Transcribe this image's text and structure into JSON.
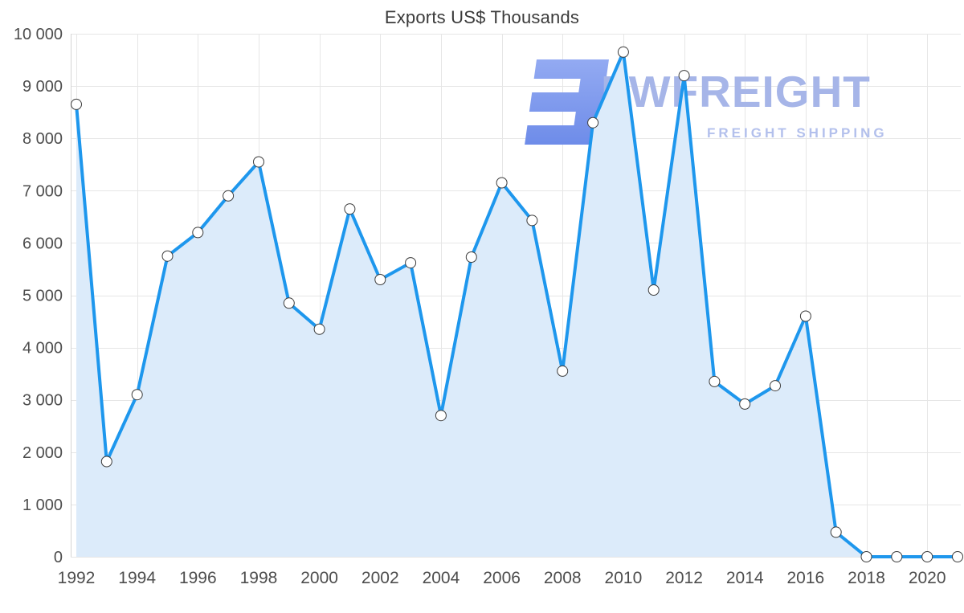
{
  "title": "Exports US$ Thousands",
  "watermark": {
    "brand": "FWFREIGHT",
    "tagline": "FREIGHT SHIPPING"
  },
  "colors": {
    "line": "#1e97ed",
    "fill": "#dcebfa",
    "grid": "#e6e6e6",
    "axis": "#d4d4d4",
    "tick_text": "#4d4d4d",
    "title_text": "#3a3a3a",
    "marker_fill": "#ffffff",
    "marker_stroke": "#3d3d3d",
    "brand_text": "#a6b5e8",
    "tagline_text": "#b3c0ec",
    "logo_gradient_start": "#93aaf2",
    "logo_gradient_end": "#6e8ce9"
  },
  "chart_data": {
    "type": "area",
    "title": "Exports US$ Thousands",
    "x": [
      1992,
      1993,
      1994,
      1995,
      1996,
      1997,
      1998,
      1999,
      2000,
      2001,
      2002,
      2003,
      2004,
      2005,
      2006,
      2007,
      2008,
      2009,
      2010,
      2011,
      2012,
      2013,
      2014,
      2015,
      2016,
      2017,
      2018,
      2019,
      2020,
      2021
    ],
    "series": [
      {
        "name": "Exports US$ Thousands",
        "values": [
          8650,
          1820,
          3100,
          5750,
          6200,
          6900,
          7550,
          4850,
          4350,
          6650,
          5300,
          5620,
          2700,
          5730,
          7150,
          6430,
          3550,
          8300,
          9650,
          5100,
          9200,
          3350,
          2920,
          3270,
          4600,
          470,
          0,
          0,
          0,
          0
        ]
      }
    ],
    "ylim": [
      0,
      10000
    ],
    "yticks": [
      0,
      1000,
      2000,
      3000,
      4000,
      5000,
      6000,
      7000,
      8000,
      9000,
      10000
    ],
    "ytick_labels": [
      "0",
      "1 000",
      "2 000",
      "3 000",
      "4 000",
      "5 000",
      "6 000",
      "7 000",
      "8 000",
      "9 000",
      "10 000"
    ],
    "xticks": [
      1992,
      1994,
      1996,
      1998,
      2000,
      2002,
      2004,
      2006,
      2008,
      2010,
      2012,
      2014,
      2016,
      2018,
      2020
    ],
    "grid": true,
    "legend": false,
    "marker": "circle"
  }
}
